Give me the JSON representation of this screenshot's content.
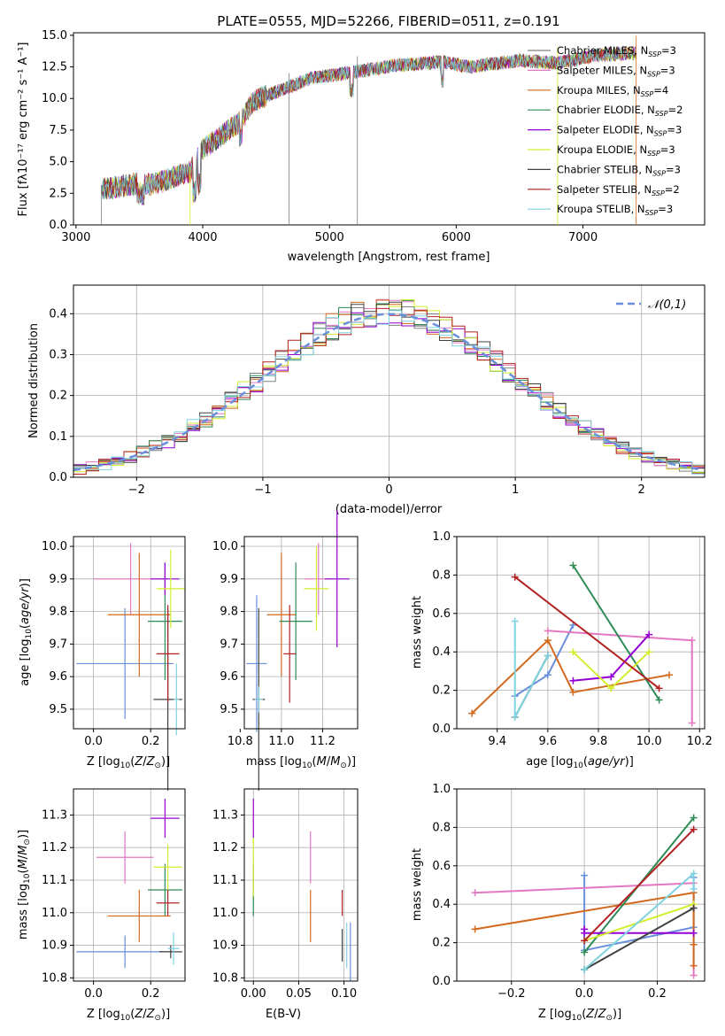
{
  "chart_data": [
    {
      "type": "line",
      "title": "PLATE=0555, MJD=52266, FIBERID=0511, z=0.191",
      "xlabel": "wavelength [Angstrom, rest frame]",
      "ylabel": "Flux [fλ10⁻¹⁷ erg cm⁻² s⁻¹ A⁻¹]",
      "xlim": [
        2980,
        7960
      ],
      "ylim": [
        0,
        15.2
      ],
      "xticks": [
        "3000",
        "4000",
        "5000",
        "6000",
        "7000"
      ],
      "yticks": [
        "0.0",
        "2.5",
        "5.0",
        "7.5",
        "10.0",
        "12.5",
        "15.0"
      ],
      "legend_position": "top-right",
      "grid": false,
      "x_range_data": [
        3200,
        7420
      ],
      "trend_x": [
        3200,
        3500,
        3600,
        3900,
        4000,
        4300,
        4400,
        4700,
        4850,
        5200,
        5500,
        5900,
        6100,
        6500,
        6800,
        7100,
        7420
      ],
      "trend_y": [
        2.8,
        3.3,
        3.2,
        4.2,
        6.0,
        8.2,
        9.8,
        11.0,
        11.6,
        12.1,
        12.6,
        12.9,
        12.5,
        13.0,
        12.8,
        13.4,
        13.6
      ],
      "series": [
        {
          "name": "Chabrier MILES",
          "nssp": "3",
          "color": "#808080"
        },
        {
          "name": "Salpeter MILES",
          "nssp": "3",
          "color": "#e377c2"
        },
        {
          "name": "Kroupa MILES",
          "nssp": "4",
          "color": "#d2691e"
        },
        {
          "name": "Chabrier ELODIE",
          "nssp": "2",
          "color": "#2e8b57"
        },
        {
          "name": "Salpeter ELODIE",
          "nssp": "3",
          "color": "#9400d3"
        },
        {
          "name": "Kroupa ELODIE",
          "nssp": "3",
          "color": "#d4ed2e"
        },
        {
          "name": "Chabrier STELIB",
          "nssp": "3",
          "color": "#404040"
        },
        {
          "name": "Salpeter STELIB",
          "nssp": "2",
          "color": "#b22222"
        },
        {
          "name": "Kroupa STELIB",
          "nssp": "3",
          "color": "#7fd3e0"
        }
      ]
    },
    {
      "type": "histogram",
      "xlabel": "(data-model)/error",
      "ylabel": "Normed distribution",
      "xlim": [
        -2.5,
        2.5
      ],
      "ylim": [
        0,
        0.47
      ],
      "xticks": [
        "−2",
        "−1",
        "0",
        "1",
        "2"
      ],
      "yticks": [
        "0.0",
        "0.1",
        "0.2",
        "0.3",
        "0.4"
      ],
      "grid": true,
      "legend_label": "𝒩(0,1)",
      "legend_position": "top-right",
      "curve": {
        "mu": 0,
        "sigma": 1,
        "color": "#6a8fdc"
      },
      "bin_width": 0.1
    },
    {
      "type": "errorbar",
      "xlabel": "Z [log10(Z/Z⊙)]",
      "ylabel": "age  [log10(age/yr)]",
      "xlim": [
        -0.07,
        0.32
      ],
      "ylim": [
        9.44,
        10.03
      ],
      "xticks": [
        "0.0",
        "0.2"
      ],
      "yticks": [
        "9.5",
        "9.6",
        "9.7",
        "9.8",
        "9.9",
        "10.0"
      ],
      "points": [
        {
          "x": 0.11,
          "y": 9.64,
          "xerr": 0.17,
          "yerr": 0.17,
          "color": "#6a8fdc"
        },
        {
          "x": 0.13,
          "y": 9.9,
          "xerr": 0.13,
          "yerr": 0.11,
          "color": "#e377c2"
        },
        {
          "x": 0.16,
          "y": 9.79,
          "xerr": 0.11,
          "yerr": 0.19,
          "color": "#d2691e"
        },
        {
          "x": 0.25,
          "y": 9.77,
          "xerr": 0.06,
          "yerr": 0.18,
          "color": "#2e8b57"
        },
        {
          "x": 0.25,
          "y": 9.9,
          "xerr": 0.05,
          "yerr": 0.05,
          "color": "#9400d3"
        },
        {
          "x": 0.27,
          "y": 9.87,
          "xerr": 0.05,
          "yerr": 0.12,
          "color": "#d4ed2e"
        },
        {
          "x": 0.26,
          "y": 9.53,
          "xerr": 0.05,
          "yerr": 0.28,
          "color": "#404040"
        },
        {
          "x": 0.26,
          "y": 9.67,
          "xerr": 0.04,
          "yerr": 0.15,
          "color": "#b22222"
        },
        {
          "x": 0.29,
          "y": 9.53,
          "xerr": 0.01,
          "yerr": 0.11,
          "color": "#7fd3e0"
        }
      ]
    },
    {
      "type": "errorbar",
      "xlabel": "mass [log10(M/M⊙)]",
      "xlim": [
        10.82,
        11.37
      ],
      "ylim": [
        9.44,
        10.03
      ],
      "xticks": [
        "10.8",
        "11.0",
        "11.2"
      ],
      "yticks": [
        "9.5",
        "9.6",
        "9.7",
        "9.8",
        "9.9",
        "10.0"
      ],
      "points": [
        {
          "x": 10.88,
          "y": 9.64,
          "xerr": 0.05,
          "yerr": 0.21,
          "color": "#6a8fdc"
        },
        {
          "x": 11.18,
          "y": 9.9,
          "xerr": 0.07,
          "yerr": 0.11,
          "color": "#e377c2"
        },
        {
          "x": 11.0,
          "y": 9.79,
          "xerr": 0.07,
          "yerr": 0.19,
          "color": "#d2691e"
        },
        {
          "x": 11.07,
          "y": 9.77,
          "xerr": 0.08,
          "yerr": 0.18,
          "color": "#2e8b57"
        },
        {
          "x": 11.27,
          "y": 9.9,
          "xerr": 0.06,
          "yerr": 0.21,
          "color": "#9400d3"
        },
        {
          "x": 11.17,
          "y": 9.87,
          "xerr": 0.06,
          "yerr": 0.13,
          "color": "#d4ed2e"
        },
        {
          "x": 10.89,
          "y": 9.53,
          "xerr": 0.03,
          "yerr": 0.28,
          "color": "#404040"
        },
        {
          "x": 11.04,
          "y": 9.67,
          "xerr": 0.03,
          "yerr": 0.15,
          "color": "#b22222"
        },
        {
          "x": 10.89,
          "y": 9.53,
          "xerr": 0.02,
          "yerr": 0.04,
          "color": "#7fd3e0"
        }
      ]
    },
    {
      "type": "line",
      "xlabel": "age  [log10(age/yr)]",
      "ylabel": "mass weight",
      "xlim": [
        9.24,
        10.22
      ],
      "ylim": [
        0,
        1
      ],
      "xticks": [
        "9.4",
        "9.6",
        "9.8",
        "10.0",
        "10.2"
      ],
      "yticks": [
        "0.0",
        "0.2",
        "0.4",
        "0.6",
        "0.8",
        "1.0"
      ],
      "series": [
        {
          "color": "#6a8fdc",
          "x": [
            9.47,
            9.6,
            9.7
          ],
          "y": [
            0.17,
            0.28,
            0.54
          ]
        },
        {
          "color": "#e377c2",
          "x": [
            9.6,
            10.17,
            10.17
          ],
          "y": [
            0.51,
            0.46,
            0.03
          ]
        },
        {
          "color": "#d2691e",
          "x": [
            9.3,
            9.6,
            9.7,
            10.08
          ],
          "y": [
            0.08,
            0.46,
            0.19,
            0.28
          ]
        },
        {
          "color": "#2e8b57",
          "x": [
            9.7,
            10.04
          ],
          "y": [
            0.85,
            0.15
          ]
        },
        {
          "color": "#9400d3",
          "x": [
            9.7,
            9.85,
            10.0
          ],
          "y": [
            0.25,
            0.27,
            0.49
          ]
        },
        {
          "color": "#d4ed2e",
          "x": [
            9.7,
            9.85,
            10.0
          ],
          "y": [
            0.4,
            0.21,
            0.4
          ]
        },
        {
          "color": "#404040",
          "x": [
            9.47,
            9.6
          ],
          "y": [
            0.06,
            0.38
          ]
        },
        {
          "color": "#b22222",
          "x": [
            9.47,
            10.04
          ],
          "y": [
            0.79,
            0.21
          ]
        },
        {
          "color": "#7fd3e0",
          "x": [
            9.47,
            9.47,
            9.6
          ],
          "y": [
            0.56,
            0.06,
            0.38
          ]
        }
      ]
    },
    {
      "type": "errorbar",
      "xlabel": "Z [log10(Z/Z⊙)]",
      "ylabel": "mass [log10(M/M⊙)]",
      "xlim": [
        -0.07,
        0.32
      ],
      "ylim": [
        10.79,
        11.38
      ],
      "xticks": [
        "0.0",
        "0.2"
      ],
      "yticks": [
        "10.8",
        "10.9",
        "11.0",
        "11.1",
        "11.2",
        "11.3"
      ],
      "points": [
        {
          "x": 0.11,
          "y": 10.88,
          "xerr": 0.17,
          "yerr": 0.05,
          "color": "#6a8fdc"
        },
        {
          "x": 0.11,
          "y": 11.17,
          "xerr": 0.1,
          "yerr": 0.08,
          "color": "#e377c2"
        },
        {
          "x": 0.16,
          "y": 10.99,
          "xerr": 0.11,
          "yerr": 0.08,
          "color": "#d2691e"
        },
        {
          "x": 0.25,
          "y": 11.07,
          "xerr": 0.06,
          "yerr": 0.08,
          "color": "#2e8b57"
        },
        {
          "x": 0.25,
          "y": 11.29,
          "xerr": 0.05,
          "yerr": 0.06,
          "color": "#9400d3"
        },
        {
          "x": 0.26,
          "y": 11.14,
          "xerr": 0.05,
          "yerr": 0.07,
          "color": "#d4ed2e"
        },
        {
          "x": 0.27,
          "y": 10.88,
          "xerr": 0.04,
          "yerr": 0.02,
          "color": "#404040"
        },
        {
          "x": 0.26,
          "y": 11.03,
          "xerr": 0.04,
          "yerr": 0.04,
          "color": "#b22222"
        },
        {
          "x": 0.28,
          "y": 10.89,
          "xerr": 0.02,
          "yerr": 0.05,
          "color": "#7fd3e0"
        }
      ]
    },
    {
      "type": "errorbar",
      "xlabel": "E(B-V)",
      "xlim": [
        -0.01,
        0.115
      ],
      "ylim": [
        10.79,
        11.38
      ],
      "xticks": [
        "0.00",
        "0.05",
        "0.10"
      ],
      "yticks": [
        "10.8",
        "10.9",
        "11.0",
        "11.1",
        "11.2",
        "11.3"
      ],
      "points": [
        {
          "x": 0.107,
          "y": 10.88,
          "xerr": 0.0,
          "yerr": 0.09,
          "color": "#6a8fdc"
        },
        {
          "x": 0.063,
          "y": 11.17,
          "xerr": 0.0,
          "yerr": 0.08,
          "color": "#e377c2"
        },
        {
          "x": 0.063,
          "y": 10.99,
          "xerr": 0.0,
          "yerr": 0.08,
          "color": "#d2691e"
        },
        {
          "x": 0.0,
          "y": 11.07,
          "xerr": 0.0,
          "yerr": 0.08,
          "color": "#2e8b57"
        },
        {
          "x": 0.0,
          "y": 11.29,
          "xerr": 0.0,
          "yerr": 0.06,
          "color": "#9400d3"
        },
        {
          "x": 0.0,
          "y": 11.14,
          "xerr": 0.0,
          "yerr": 0.09,
          "color": "#d4ed2e"
        },
        {
          "x": 0.098,
          "y": 10.9,
          "xerr": 0.0,
          "yerr": 0.05,
          "color": "#404040"
        },
        {
          "x": 0.098,
          "y": 11.03,
          "xerr": 0.0,
          "yerr": 0.04,
          "color": "#b22222"
        },
        {
          "x": 0.103,
          "y": 10.9,
          "xerr": 0.0,
          "yerr": 0.07,
          "color": "#7fd3e0"
        }
      ]
    },
    {
      "type": "line",
      "xlabel": "Z [log10(Z/Z⊙)]",
      "ylabel": "mass weight",
      "xlim": [
        -0.35,
        0.33
      ],
      "ylim": [
        0,
        1
      ],
      "xticks": [
        "−0.2",
        "0.0",
        "0.2"
      ],
      "yticks": [
        "0.0",
        "0.2",
        "0.4",
        "0.6",
        "0.8",
        "1.0"
      ],
      "series": [
        {
          "color": "#6a8fdc",
          "x": [
            0.0,
            0.0,
            0.3,
            0.3
          ],
          "y": [
            0.55,
            0.16,
            0.28,
            0.54
          ]
        },
        {
          "color": "#e377c2",
          "x": [
            -0.3,
            0.3,
            0.3
          ],
          "y": [
            0.46,
            0.51,
            0.03
          ]
        },
        {
          "color": "#d2691e",
          "x": [
            -0.3,
            0.3,
            0.3,
            0.3
          ],
          "y": [
            0.27,
            0.46,
            0.19,
            0.08
          ]
        },
        {
          "color": "#2e8b57",
          "x": [
            0.0,
            0.3
          ],
          "y": [
            0.15,
            0.85
          ]
        },
        {
          "color": "#9400d3",
          "x": [
            0.0,
            0.0,
            0.3
          ],
          "y": [
            0.27,
            0.25,
            0.25
          ]
        },
        {
          "color": "#d4ed2e",
          "x": [
            0.0,
            0.3,
            0.3
          ],
          "y": [
            0.21,
            0.4,
            0.4
          ]
        },
        {
          "color": "#404040",
          "x": [
            0.0,
            0.3
          ],
          "y": [
            0.06,
            0.38
          ]
        },
        {
          "color": "#b22222",
          "x": [
            0.0,
            0.3
          ],
          "y": [
            0.21,
            0.79
          ]
        },
        {
          "color": "#7fd3e0",
          "x": [
            0.0,
            0.3,
            0.3
          ],
          "y": [
            0.06,
            0.56,
            0.48
          ]
        }
      ]
    }
  ]
}
